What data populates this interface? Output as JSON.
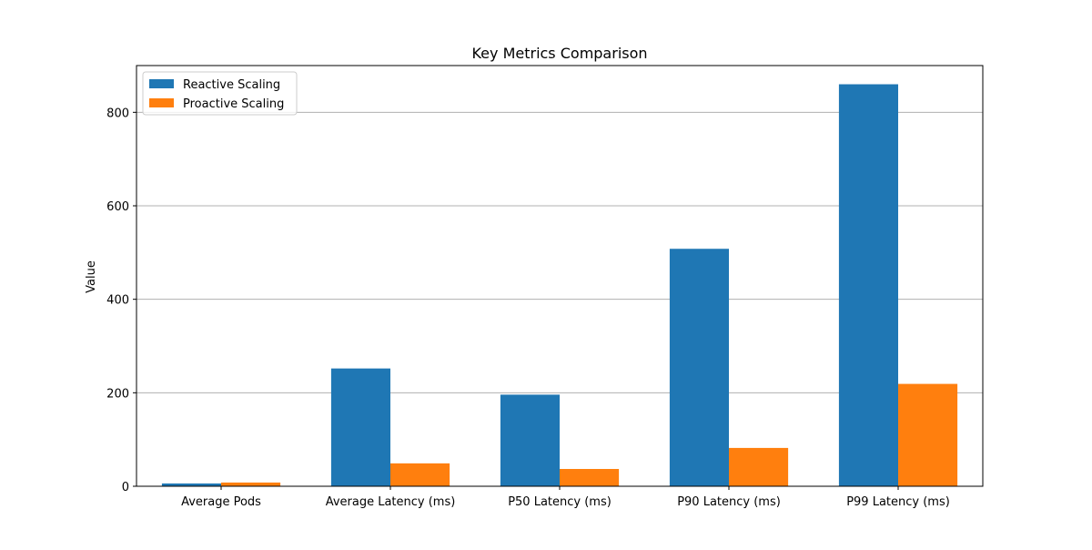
{
  "chart_data": {
    "type": "bar",
    "title": "Key Metrics Comparison",
    "xlabel": "",
    "ylabel": "Value",
    "ylim": [
      0,
      900
    ],
    "yticks": [
      0,
      200,
      400,
      600,
      800
    ],
    "grid": "y",
    "legend_position": "top-left",
    "categories": [
      "Average Pods",
      "Average Latency (ms)",
      "P50 Latency (ms)",
      "P90 Latency (ms)",
      "P99 Latency (ms)"
    ],
    "series": [
      {
        "name": "Reactive Scaling",
        "color": "#1f77b4",
        "values": [
          6,
          252,
          196,
          508,
          860
        ]
      },
      {
        "name": "Proactive Scaling",
        "color": "#ff7f0e",
        "values": [
          8,
          49,
          37,
          82,
          219
        ]
      }
    ]
  }
}
